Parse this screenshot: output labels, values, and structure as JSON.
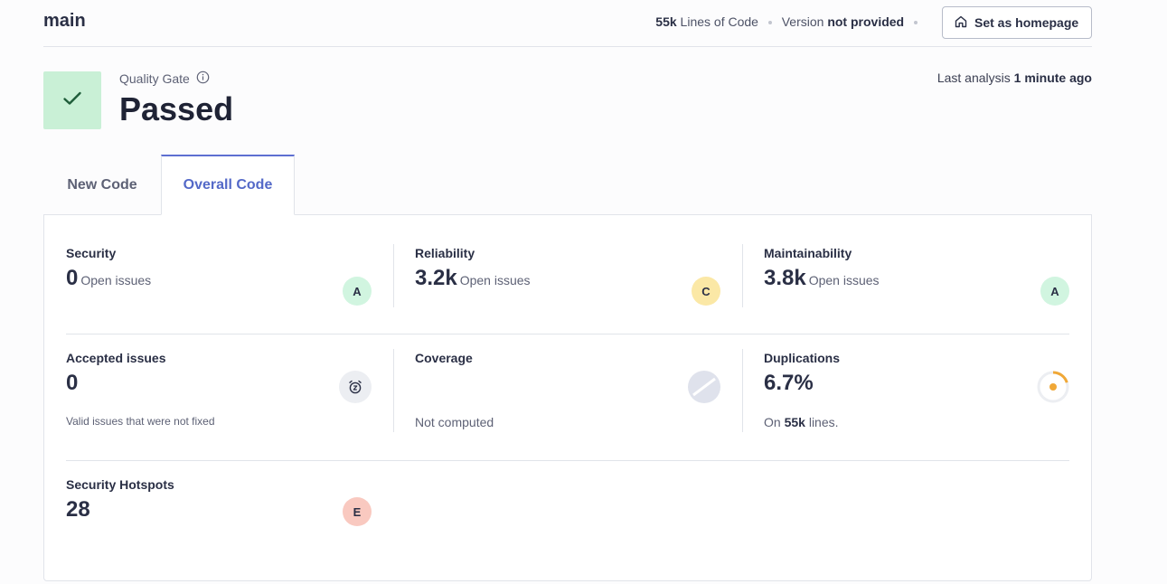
{
  "header": {
    "branch": "main",
    "lines_of_code_value": "55k",
    "lines_of_code_label": "Lines of Code",
    "version_label": "Version",
    "version_value": "not provided",
    "homepage_button": "Set as homepage",
    "homepage_icon": "home-icon"
  },
  "quality_gate": {
    "label": "Quality Gate",
    "status": "Passed",
    "status_color": "#c9f0d6",
    "info_icon": "info-icon",
    "check_icon": "check-icon"
  },
  "last_analysis": {
    "label": "Last analysis",
    "value": "1 minute ago"
  },
  "tabs": [
    {
      "label": "New Code",
      "active": false
    },
    {
      "label": "Overall Code",
      "active": true
    }
  ],
  "metrics": {
    "security": {
      "title": "Security",
      "value": "0",
      "unit": "Open issues",
      "grade": "A",
      "grade_color": "#d1f5e0"
    },
    "reliability": {
      "title": "Reliability",
      "value": "3.2k",
      "unit": "Open issues",
      "grade": "C",
      "grade_color": "#fbe8a6"
    },
    "maintainability": {
      "title": "Maintainability",
      "value": "3.8k",
      "unit": "Open issues",
      "grade": "A",
      "grade_color": "#d1f5e0"
    },
    "accepted": {
      "title": "Accepted issues",
      "value": "0",
      "description": "Valid issues that were not fixed",
      "icon": "alarm-clock-icon"
    },
    "coverage": {
      "title": "Coverage",
      "description": "Not computed",
      "icon": "coverage-disabled-icon"
    },
    "duplications": {
      "title": "Duplications",
      "value": "6.7%",
      "desc_prefix": "On",
      "desc_value": "55k",
      "desc_suffix": "lines.",
      "icon": "duplication-donut-icon",
      "ratio": 0.067,
      "accent": "#f0a837"
    },
    "hotspots": {
      "title": "Security Hotspots",
      "value": "28",
      "grade": "E",
      "grade_color": "#f9c9c0"
    }
  }
}
